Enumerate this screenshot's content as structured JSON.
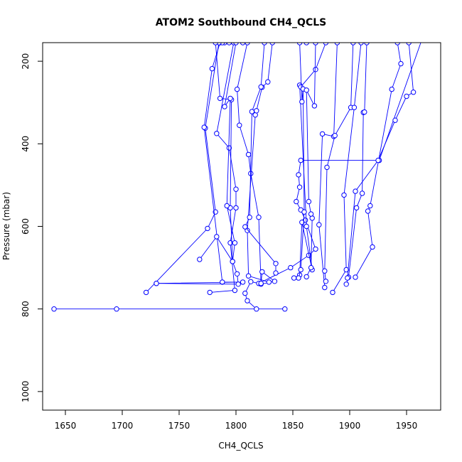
{
  "chart_data": {
    "type": "scatter",
    "title": "ATOM2 Southbound CH4_QCLS",
    "xlabel": "CH4_QCLS",
    "ylabel": "Pressure (mbar)",
    "xlim": [
      1630,
      1980
    ],
    "ylim": [
      1045,
      155
    ],
    "y_reversed": true,
    "x_ticks": [
      1650,
      1700,
      1750,
      1800,
      1850,
      1900,
      1950
    ],
    "y_ticks": [
      200,
      400,
      600,
      800,
      1000
    ],
    "line_color": "#0000ff",
    "marker": "open-circle",
    "grid": false,
    "legend": "none",
    "series": [
      {
        "x": [
          1640,
          1695,
          1843,
          1818,
          1810,
          1808,
          1813,
          1820,
          1848,
          1864,
          1870,
          1861,
          1857,
          1853,
          1856,
          1855,
          1857,
          1926,
          1967
        ],
        "y": [
          800,
          800,
          800,
          800,
          780,
          762,
          734,
          738,
          700,
          670,
          655,
          585,
          560,
          540,
          505,
          475,
          440,
          440,
          120
        ]
      },
      {
        "x": [
          1721,
          1775,
          1782,
          1773,
          1785,
          1790,
          1794
        ],
        "y": [
          760,
          605,
          565,
          362,
          155,
          155,
          155
        ]
      },
      {
        "x": [
          1777,
          1799,
          1795,
          1800,
          1800,
          1794,
          1783,
          1798
        ],
        "y": [
          760,
          755,
          640,
          555,
          510,
          410,
          375,
          155
        ]
      },
      {
        "x": [
          1730,
          1806,
          1788,
          1772,
          1779,
          1786,
          1788,
          1785
        ],
        "y": [
          738,
          735,
          735,
          360,
          218,
          155,
          155,
          155
        ]
      },
      {
        "x": [
          1730,
          1802,
          1801,
          1797,
          1795,
          1796,
          1786,
          1782,
          1806
        ],
        "y": [
          738,
          740,
          715,
          685,
          555,
          293,
          290,
          155,
          155
        ]
      },
      {
        "x": [
          1768,
          1783,
          1797,
          1799,
          1792,
          1795,
          1790,
          1800
        ],
        "y": [
          680,
          625,
          685,
          640,
          550,
          290,
          310,
          155
        ]
      },
      {
        "x": [
          1822,
          1834,
          1823,
          1822,
          1820,
          1813,
          1811,
          1803,
          1801,
          1810
        ],
        "y": [
          740,
          733,
          710,
          738,
          578,
          472,
          426,
          355,
          268,
          155
        ]
      },
      {
        "x": [
          1829,
          1811,
          1810,
          1817,
          1818,
          1823,
          1828,
          1832
        ],
        "y": [
          735,
          720,
          610,
          330,
          320,
          263,
          250,
          155
        ]
      },
      {
        "x": [
          1835,
          1835,
          1808,
          1812,
          1814,
          1822,
          1825
        ],
        "y": [
          713,
          690,
          601,
          578,
          322,
          262,
          155
        ]
      },
      {
        "x": [
          1851,
          1856,
          1858,
          1867,
          1862,
          1856,
          1857,
          1870,
          1879
        ],
        "y": [
          725,
          718,
          590,
          705,
          600,
          258,
          262,
          220,
          155
        ]
      },
      {
        "x": [
          1855,
          1857,
          1860,
          1859,
          1858,
          1856,
          1862
        ],
        "y": [
          725,
          705,
          565,
          267,
          298,
          155,
          155
        ]
      },
      {
        "x": [
          1862,
          1866,
          1867,
          1866,
          1864,
          1862,
          1869,
          1870
        ],
        "y": [
          722,
          700,
          580,
          570,
          540,
          270,
          308,
          155
        ]
      },
      {
        "x": [
          1878,
          1873,
          1876,
          1886,
          1889
        ],
        "y": [
          748,
          596,
          376,
          382,
          155
        ]
      },
      {
        "x": [
          1879,
          1878,
          1880,
          1887,
          1901,
          1903
        ],
        "y": [
          733,
          708,
          457,
          380,
          312,
          155
        ]
      },
      {
        "x": [
          1885,
          1897,
          1895,
          1904,
          1910
        ],
        "y": [
          760,
          705,
          524,
          312,
          155
        ]
      },
      {
        "x": [
          1897,
          1899,
          1906,
          1911,
          1912,
          1913,
          1915
        ],
        "y": [
          740,
          723,
          555,
          520,
          324,
          323,
          155
        ]
      },
      {
        "x": [
          1905,
          1920,
          1916,
          1918,
          1937,
          1945,
          1942
        ],
        "y": [
          723,
          650,
          563,
          550,
          268,
          206,
          155
        ]
      },
      {
        "x": [
          1898,
          1905,
          1925,
          1940,
          1950,
          1956,
          1952
        ],
        "y": [
          725,
          515,
          440,
          343,
          285,
          275,
          155
        ]
      }
    ]
  }
}
